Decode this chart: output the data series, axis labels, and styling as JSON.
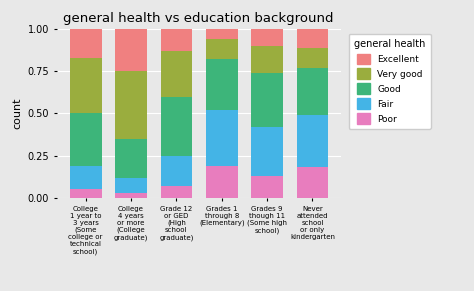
{
  "title": "general health vs education background",
  "ylabel": "count",
  "categories": [
    "College\n1 year to\n3 years\n(Some\ncollege or\ntechnical\nschool)",
    "College\n4 years\nor more\n(College\ngraduate)",
    "Grade 12\nor GED\n(High\nschool\ngraduate)",
    "Grades 1\nthrough 8\n(Elementary)",
    "Grades 9\nthough 11\n(Some high\nschool)",
    "Never\nattended\nschool\nor only\nkindergarten"
  ],
  "legend_labels": [
    "Excellent",
    "Very good",
    "Good",
    "Fair",
    "Poor"
  ],
  "colors_map": {
    "Poor": "#e87dbe",
    "Fair": "#44b4e6",
    "Good": "#3db57a",
    "Very good": "#9aad3e",
    "Excellent": "#f08080"
  },
  "data": {
    "Poor": [
      0.05,
      0.03,
      0.07,
      0.19,
      0.13,
      0.18
    ],
    "Fair": [
      0.14,
      0.09,
      0.18,
      0.33,
      0.29,
      0.31
    ],
    "Good": [
      0.31,
      0.23,
      0.35,
      0.3,
      0.32,
      0.28
    ],
    "Very good": [
      0.33,
      0.4,
      0.27,
      0.12,
      0.16,
      0.12
    ],
    "Excellent": [
      0.17,
      0.25,
      0.13,
      0.06,
      0.1,
      0.11
    ]
  },
  "ylim": [
    0,
    1.0
  ],
  "yticks": [
    0.0,
    0.25,
    0.5,
    0.75,
    1.0
  ],
  "legend_title": "general health",
  "bg_color": "#e8e8e8",
  "legend_bg": "#ffffff",
  "bar_width": 0.7,
  "figsize": [
    4.74,
    2.91
  ],
  "dpi": 100
}
